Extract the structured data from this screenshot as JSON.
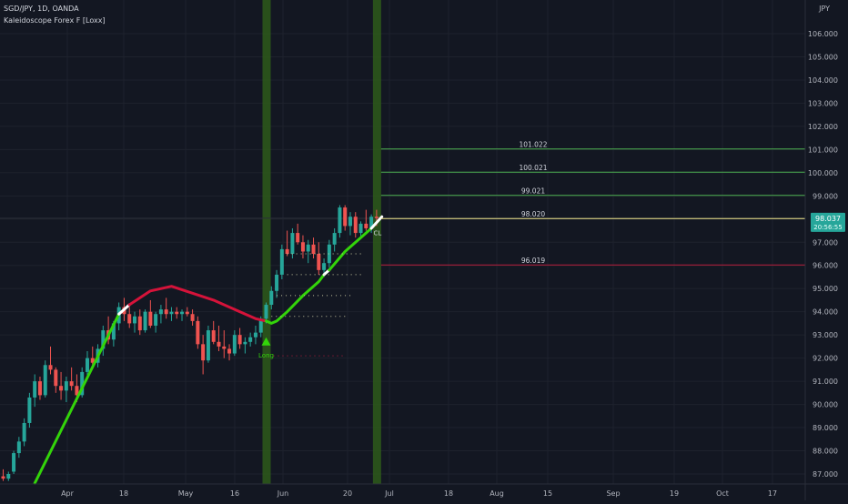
{
  "header": {
    "title": "SGD/JPY, 1D, OANDA",
    "indicator": "Kaleidoscope Forex F [Loxx]"
  },
  "currency": "JPY",
  "colors": {
    "background": "#131722",
    "grid": "#1e222d",
    "up": "#26a69a",
    "down": "#ef5350",
    "trend_up": "#33d40a",
    "trend_down": "#d5133a",
    "transition": "#ffffff",
    "green_level": "#4caf50",
    "red_level": "#b71c3c",
    "price_line": "#f0e68c",
    "price_badge": "#26a69a",
    "signal_band": "#2e5a1a"
  },
  "chart_data": {
    "type": "candlestick",
    "x_ticks": [
      "Apr",
      "18",
      "May",
      "16",
      "Jun",
      "20",
      "Jul",
      "18",
      "Aug",
      "15",
      "Sep",
      "19",
      "Oct",
      "17"
    ],
    "y_ticks": [
      "106.000",
      "105.000",
      "104.000",
      "103.000",
      "102.000",
      "101.000",
      "100.000",
      "99.000",
      "98.000",
      "97.000",
      "96.000",
      "95.000",
      "94.000",
      "93.000",
      "92.000",
      "91.000",
      "90.000",
      "89.000",
      "88.000",
      "87.000"
    ],
    "ylim": [
      86.6,
      106.9
    ],
    "candles": [
      [
        86.9,
        87.2,
        86.7,
        86.8
      ],
      [
        86.8,
        87.1,
        86.7,
        87.0
      ],
      [
        87.1,
        88.0,
        87.0,
        87.9
      ],
      [
        87.9,
        88.6,
        87.7,
        88.4
      ],
      [
        88.4,
        89.4,
        88.2,
        89.2
      ],
      [
        89.2,
        90.5,
        89.0,
        90.3
      ],
      [
        90.3,
        91.3,
        89.9,
        91.0
      ],
      [
        91.0,
        91.2,
        90.2,
        90.4
      ],
      [
        90.4,
        91.9,
        90.3,
        91.7
      ],
      [
        91.7,
        92.5,
        91.3,
        91.5
      ],
      [
        91.5,
        91.6,
        90.5,
        90.8
      ],
      [
        90.8,
        91.4,
        90.2,
        90.6
      ],
      [
        90.6,
        91.2,
        90.1,
        91.0
      ],
      [
        91.0,
        91.6,
        90.6,
        90.8
      ],
      [
        90.8,
        91.3,
        90.1,
        90.4
      ],
      [
        90.4,
        91.6,
        90.3,
        91.4
      ],
      [
        91.4,
        92.3,
        91.1,
        92.0
      ],
      [
        92.0,
        92.5,
        91.7,
        91.8
      ],
      [
        91.8,
        92.6,
        91.6,
        92.4
      ],
      [
        92.4,
        93.4,
        92.1,
        93.2
      ],
      [
        93.2,
        93.8,
        92.6,
        92.8
      ],
      [
        92.8,
        93.6,
        92.5,
        93.5
      ],
      [
        93.5,
        94.4,
        93.2,
        94.2
      ],
      [
        94.2,
        94.6,
        93.6,
        93.9
      ],
      [
        93.9,
        94.2,
        93.3,
        93.5
      ],
      [
        93.5,
        94.0,
        93.1,
        93.8
      ],
      [
        93.8,
        94.1,
        93.0,
        93.2
      ],
      [
        93.2,
        94.1,
        93.1,
        94.0
      ],
      [
        94.0,
        94.5,
        93.3,
        93.4
      ],
      [
        93.4,
        94.0,
        93.1,
        93.9
      ],
      [
        93.9,
        94.3,
        93.5,
        94.1
      ],
      [
        94.1,
        94.6,
        93.7,
        93.9
      ],
      [
        93.9,
        94.2,
        93.6,
        94.0
      ],
      [
        94.0,
        94.2,
        93.7,
        93.9
      ],
      [
        93.9,
        94.1,
        93.6,
        94.0
      ],
      [
        94.0,
        94.2,
        93.8,
        93.9
      ],
      [
        93.9,
        94.1,
        93.4,
        93.6
      ],
      [
        93.6,
        93.8,
        92.4,
        92.6
      ],
      [
        92.6,
        93.0,
        91.3,
        91.9
      ],
      [
        91.9,
        93.4,
        91.8,
        93.2
      ],
      [
        93.2,
        93.6,
        92.6,
        92.7
      ],
      [
        92.7,
        93.4,
        92.3,
        92.5
      ],
      [
        92.5,
        93.2,
        92.0,
        92.4
      ],
      [
        92.4,
        92.6,
        91.9,
        92.2
      ],
      [
        92.2,
        93.2,
        92.1,
        93.0
      ],
      [
        93.0,
        93.3,
        92.4,
        92.6
      ],
      [
        92.6,
        92.9,
        92.2,
        92.7
      ],
      [
        92.7,
        93.1,
        92.5,
        92.9
      ],
      [
        92.9,
        93.4,
        92.6,
        93.1
      ],
      [
        93.1,
        93.8,
        92.9,
        93.7
      ],
      [
        93.7,
        94.4,
        93.5,
        94.3
      ],
      [
        94.3,
        95.1,
        94.1,
        94.9
      ],
      [
        94.9,
        95.8,
        94.6,
        95.6
      ],
      [
        95.6,
        96.9,
        95.4,
        96.7
      ],
      [
        96.7,
        97.5,
        96.4,
        96.5
      ],
      [
        96.5,
        97.6,
        96.3,
        97.4
      ],
      [
        97.4,
        97.8,
        96.9,
        97.0
      ],
      [
        97.0,
        97.3,
        96.3,
        96.6
      ],
      [
        96.6,
        97.1,
        96.1,
        96.9
      ],
      [
        96.9,
        97.2,
        96.3,
        96.5
      ],
      [
        96.5,
        97.0,
        95.6,
        95.8
      ],
      [
        95.8,
        96.3,
        95.5,
        96.1
      ],
      [
        96.1,
        97.1,
        95.9,
        96.9
      ],
      [
        96.9,
        97.6,
        96.6,
        97.4
      ],
      [
        97.4,
        98.6,
        97.2,
        98.5
      ],
      [
        98.5,
        98.6,
        97.5,
        97.7
      ],
      [
        97.7,
        98.3,
        97.3,
        98.1
      ],
      [
        98.1,
        98.3,
        97.2,
        97.4
      ],
      [
        97.4,
        97.9,
        97.2,
        97.8
      ],
      [
        97.8,
        98.4,
        97.5,
        97.6
      ],
      [
        97.6,
        98.2,
        97.4,
        98.1
      ],
      [
        98.1,
        98.4,
        97.7,
        98.04
      ]
    ],
    "trend_segments": [
      {
        "trend": "up",
        "points": [
          [
            6,
            86.6
          ],
          [
            22,
            93.9
          ]
        ]
      },
      {
        "trend": "transition",
        "points": [
          [
            22,
            93.9
          ],
          [
            24,
            94.3
          ]
        ]
      },
      {
        "trend": "down",
        "points": [
          [
            24,
            94.3
          ],
          [
            28,
            94.9
          ],
          [
            32,
            95.1
          ],
          [
            36,
            94.8
          ],
          [
            40,
            94.5
          ],
          [
            44,
            94.1
          ],
          [
            48,
            93.7
          ],
          [
            50,
            93.6
          ]
        ]
      },
      {
        "trend": "up",
        "points": [
          [
            50,
            93.6
          ],
          [
            51,
            93.5
          ],
          [
            52,
            93.6
          ],
          [
            54,
            94.0
          ],
          [
            57,
            94.7
          ],
          [
            60,
            95.3
          ],
          [
            61,
            95.6
          ]
        ]
      },
      {
        "trend": "transition",
        "points": [
          [
            61,
            95.6
          ],
          [
            62,
            95.8
          ]
        ]
      },
      {
        "trend": "up",
        "points": [
          [
            62,
            95.8
          ],
          [
            65,
            96.6
          ],
          [
            68,
            97.2
          ],
          [
            70,
            97.6
          ]
        ]
      },
      {
        "trend": "transition",
        "points": [
          [
            70,
            97.6
          ],
          [
            72,
            98.1
          ]
        ]
      }
    ],
    "signal_bars": [
      50,
      71
    ],
    "levels": [
      {
        "label": "101.022",
        "value": 101.022,
        "kind": "green"
      },
      {
        "label": "100.021",
        "value": 100.021,
        "kind": "green"
      },
      {
        "label": "99.021",
        "value": 99.021,
        "kind": "green"
      },
      {
        "label": "98.020",
        "value": 98.02,
        "kind": "yellow"
      },
      {
        "label": "96.019",
        "value": 96.019,
        "kind": "red"
      }
    ],
    "stop_dots": [
      {
        "bar": 51,
        "value": 93.8
      },
      {
        "bar": 52,
        "value": 94.7
      },
      {
        "bar": 54,
        "value": 95.6
      },
      {
        "bar": 54,
        "value": 96.5
      }
    ],
    "long_signal": {
      "bar": 50,
      "value": 92.7,
      "label": "Long",
      "dots_value": 92.1
    },
    "cl_signal": {
      "bar": 71,
      "value": 97.3,
      "label": "CL"
    },
    "last_price": {
      "label": "98.037",
      "value": 98.037,
      "countdown": "20:56:55"
    }
  }
}
